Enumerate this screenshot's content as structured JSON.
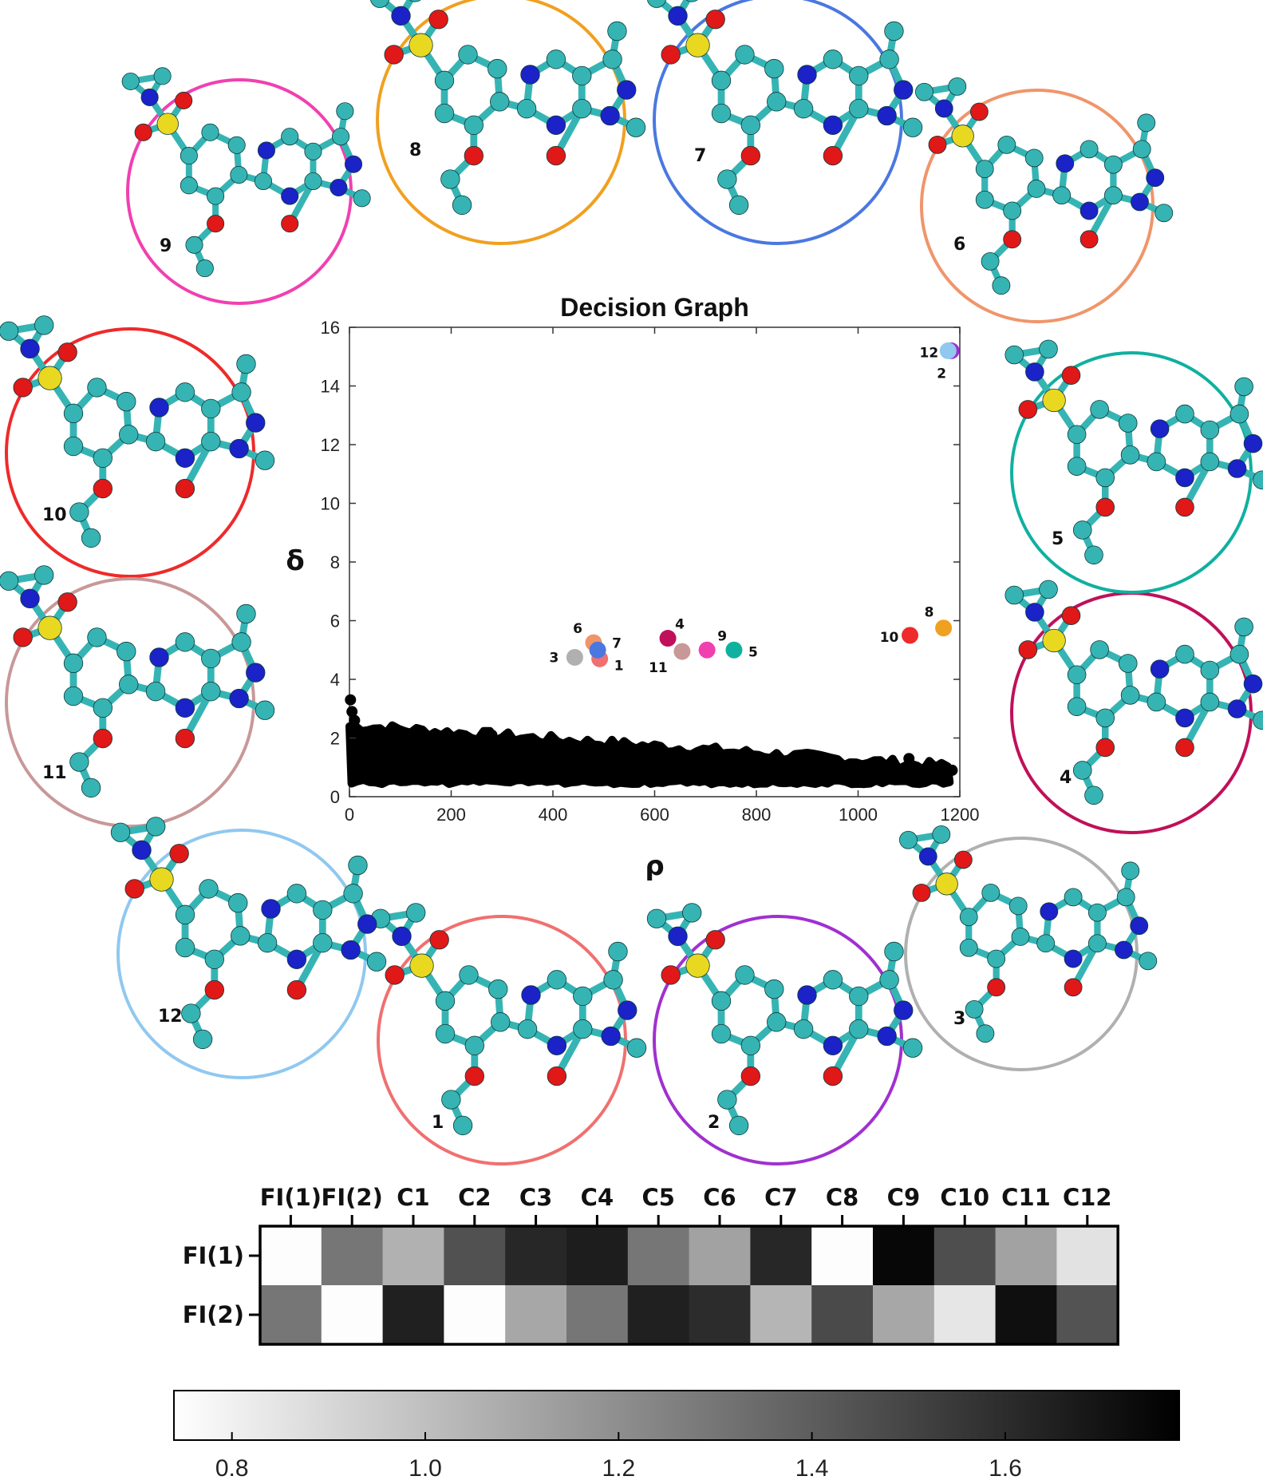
{
  "chart_data": [
    {
      "type": "scatter",
      "title": "Decision Graph",
      "xlabel": "ρ",
      "ylabel": "δ",
      "xlim": [
        0,
        1200
      ],
      "ylim": [
        0,
        16
      ],
      "xticks": [
        0,
        200,
        400,
        600,
        800,
        1000,
        1200
      ],
      "yticks": [
        0,
        2,
        4,
        6,
        8,
        10,
        12,
        14,
        16
      ],
      "grid": false,
      "background_points": {
        "color": "#000000",
        "description_band": "dense cloud of non-centre points",
        "band_x": [
          0,
          1180
        ],
        "band_y_low": [
          0.5,
          0.5
        ],
        "band_y_high_start": 2.4,
        "band_y_high_end": 1.0,
        "outliers": [
          [
            2,
            3.3
          ],
          [
            5,
            2.9
          ],
          [
            10,
            2.6
          ],
          [
            280,
            2.1
          ],
          [
            1100,
            1.3
          ],
          [
            1185,
            0.9
          ]
        ]
      },
      "cluster_centers": [
        {
          "label": "1",
          "x": 492,
          "y": 4.7,
          "color": "#f07070"
        },
        {
          "label": "2",
          "x": 1183,
          "y": 15.2,
          "color": "#a030d0"
        },
        {
          "label": "3",
          "x": 443,
          "y": 4.75,
          "color": "#b0b0b0"
        },
        {
          "label": "4",
          "x": 626,
          "y": 5.4,
          "color": "#c0105a"
        },
        {
          "label": "5",
          "x": 756,
          "y": 5.0,
          "color": "#10b0a0"
        },
        {
          "label": "6",
          "x": 480,
          "y": 5.25,
          "color": "#f0956a"
        },
        {
          "label": "7",
          "x": 488,
          "y": 5.0,
          "color": "#4a78e0"
        },
        {
          "label": "8",
          "x": 1168,
          "y": 5.75,
          "color": "#f0a020"
        },
        {
          "label": "9",
          "x": 703,
          "y": 5.0,
          "color": "#f040b0"
        },
        {
          "label": "10",
          "x": 1102,
          "y": 5.5,
          "color": "#ee2a2a"
        },
        {
          "label": "11",
          "x": 654,
          "y": 4.95,
          "color": "#c89898"
        },
        {
          "label": "12",
          "x": 1177,
          "y": 15.2,
          "color": "#90c8f0"
        }
      ]
    },
    {
      "type": "heatmap",
      "columns": [
        "FI(1)",
        "FI(2)",
        "C1",
        "C2",
        "C3",
        "C4",
        "C5",
        "C6",
        "C7",
        "C8",
        "C9",
        "C10",
        "C11",
        "C12"
      ],
      "rows": [
        "FI(1)",
        "FI(2)"
      ],
      "values": [
        [
          0.75,
          1.3,
          1.06,
          1.45,
          1.62,
          1.66,
          1.3,
          1.12,
          1.62,
          0.75,
          1.75,
          1.46,
          1.12,
          0.86
        ],
        [
          1.3,
          0.75,
          1.65,
          0.75,
          1.1,
          1.3,
          1.65,
          1.6,
          1.04,
          1.48,
          1.1,
          0.84,
          1.72,
          1.44
        ]
      ],
      "colorbar": {
        "range": [
          0.74,
          1.78
        ],
        "ticks": [
          "0.8",
          "1.0",
          "1.2",
          "1.4",
          "1.6"
        ],
        "colormap": "white-to-black"
      }
    }
  ],
  "molecules": [
    {
      "label": "1",
      "color": "#f07070"
    },
    {
      "label": "2",
      "color": "#a030d0"
    },
    {
      "label": "3",
      "color": "#b0b0b0"
    },
    {
      "label": "4",
      "color": "#c0105a"
    },
    {
      "label": "5",
      "color": "#10b0a0"
    },
    {
      "label": "6",
      "color": "#f0956a"
    },
    {
      "label": "7",
      "color": "#4a78e0"
    },
    {
      "label": "8",
      "color": "#f0a020"
    },
    {
      "label": "9",
      "color": "#f040b0"
    },
    {
      "label": "10",
      "color": "#ee2a2a"
    },
    {
      "label": "11",
      "color": "#c89898"
    },
    {
      "label": "12",
      "color": "#90c8f0"
    }
  ],
  "atom_colors": {
    "carbon": "#36b4b4",
    "nitrogen": "#1a22c8",
    "oxygen": "#e01818",
    "sulfur": "#e8d820"
  }
}
